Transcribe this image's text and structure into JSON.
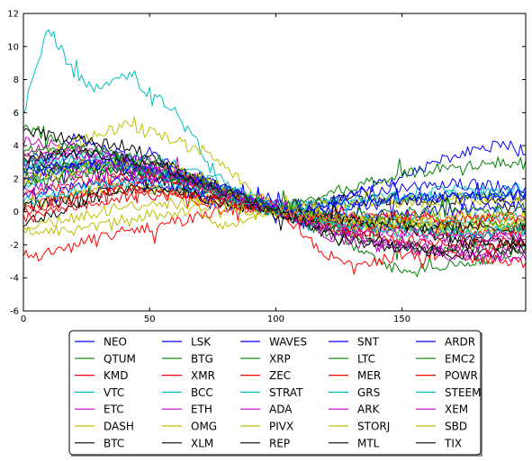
{
  "chart_data": {
    "type": "line",
    "title": "",
    "xlabel": "",
    "ylabel": "",
    "xlim": [
      0,
      199
    ],
    "ylim": [
      -6,
      12
    ],
    "x_ticks": [
      0,
      50,
      100,
      150
    ],
    "y_ticks": [
      -6,
      -4,
      -2,
      0,
      2,
      4,
      6,
      8,
      10,
      12
    ],
    "grid": false,
    "legend_placement": "below plot, 5 columns, boxed with shadow",
    "x_anchors": [
      0,
      10,
      20,
      30,
      40,
      50,
      60,
      70,
      80,
      90,
      100,
      110,
      120,
      130,
      140,
      150,
      160,
      170,
      180,
      190,
      199
    ],
    "series": [
      {
        "name": "NEO",
        "color": "#0000ff",
        "anchors": [
          1.5,
          3.2,
          4.6,
          3.8,
          3.4,
          2.0,
          1.4,
          1.0,
          0.3,
          0.9,
          0.5,
          -0.3,
          0.6,
          1.0,
          1.6,
          2.0,
          2.8,
          3.3,
          3.8,
          4.1,
          3.7
        ]
      },
      {
        "name": "QTUM",
        "color": "#008000",
        "anchors": [
          5.2,
          4.6,
          3.9,
          3.5,
          3.0,
          2.5,
          2.0,
          1.6,
          0.8,
          0.4,
          0.1,
          -0.5,
          -1.3,
          -2.2,
          -2.9,
          -3.6,
          -3.4,
          -3.1,
          -3.0,
          -2.6,
          -2.4
        ]
      },
      {
        "name": "KMD",
        "color": "#ff0000",
        "anchors": [
          -2.6,
          -2.5,
          -2.1,
          -1.5,
          -1.2,
          -0.9,
          -0.6,
          -0.3,
          0.2,
          0.5,
          0.3,
          -1.1,
          -2.6,
          -3.3,
          -3.0,
          -2.6,
          -2.6,
          -2.7,
          -2.8,
          -3.0,
          -3.1
        ]
      },
      {
        "name": "VTC",
        "color": "#00bfbf",
        "anchors": [
          6.0,
          11.2,
          8.4,
          7.3,
          8.3,
          7.3,
          6.0,
          3.8,
          1.7,
          0.8,
          0.3,
          0.4,
          0.6,
          0.5,
          0.9,
          1.0,
          1.2,
          1.3,
          1.2,
          1.3,
          1.4
        ]
      },
      {
        "name": "ETC",
        "color": "#bf00bf",
        "anchors": [
          4.3,
          4.1,
          3.7,
          3.4,
          3.0,
          2.6,
          2.3,
          1.5,
          0.9,
          0.6,
          0.1,
          -0.6,
          -1.4,
          -1.8,
          -2.0,
          -2.1,
          -2.3,
          -2.4,
          -2.4,
          -2.3,
          -2.2
        ]
      },
      {
        "name": "DASH",
        "color": "#bfbf00",
        "anchors": [
          -1.2,
          -1.2,
          -1.1,
          -0.9,
          -0.5,
          -0.2,
          0.0,
          0.1,
          -1.2,
          -0.3,
          0.1,
          0.2,
          0.4,
          0.5,
          0.6,
          0.8,
          0.8,
          0.9,
          0.9,
          0.9,
          0.9
        ]
      },
      {
        "name": "BTC",
        "color": "#000000",
        "anchors": [
          3.0,
          2.8,
          2.7,
          2.6,
          2.4,
          2.1,
          1.8,
          1.3,
          0.9,
          0.4,
          0.1,
          0.4,
          0.6,
          0.8,
          0.8,
          0.7,
          0.7,
          0.8,
          0.7,
          0.6,
          0.6
        ]
      },
      {
        "name": "LSK",
        "color": "#0000ff",
        "anchors": [
          3.2,
          3.3,
          3.4,
          3.2,
          3.0,
          3.6,
          2.6,
          1.9,
          1.1,
          0.6,
          0.3,
          0.2,
          0.6,
          1.0,
          1.3,
          1.5,
          1.6,
          1.7,
          1.6,
          1.5,
          1.4
        ]
      },
      {
        "name": "BTG",
        "color": "#008000",
        "anchors": [
          2.5,
          2.7,
          2.9,
          2.9,
          2.8,
          2.5,
          2.1,
          1.6,
          1.0,
          0.5,
          0.1,
          -0.4,
          -0.9,
          -1.4,
          -1.8,
          -2.0,
          -2.2,
          -2.3,
          -2.2,
          -2.1,
          -2.0
        ]
      },
      {
        "name": "XMR",
        "color": "#ff0000",
        "anchors": [
          0.4,
          0.6,
          1.0,
          1.4,
          1.8,
          2.1,
          2.0,
          1.7,
          1.1,
          0.5,
          0.0,
          -0.2,
          -0.3,
          -0.4,
          -0.4,
          -0.4,
          -0.5,
          -0.5,
          -0.4,
          -0.4,
          -0.4
        ]
      },
      {
        "name": "BCC",
        "color": "#00bfbf",
        "anchors": [
          1.6,
          2.1,
          2.6,
          2.7,
          2.6,
          2.4,
          2.2,
          1.8,
          1.4,
          0.7,
          0.0,
          -0.4,
          -0.7,
          -0.8,
          -0.9,
          -1.0,
          -1.1,
          -1.1,
          -1.2,
          -1.2,
          -1.2
        ]
      },
      {
        "name": "ETH",
        "color": "#bf00bf",
        "anchors": [
          2.0,
          2.3,
          2.6,
          2.7,
          2.6,
          2.4,
          2.1,
          1.7,
          1.2,
          0.6,
          0.1,
          -0.2,
          -0.6,
          -0.9,
          -1.1,
          -1.2,
          -1.3,
          -1.4,
          -1.4,
          -1.4,
          -1.4
        ]
      },
      {
        "name": "OMG",
        "color": "#bfbf00",
        "anchors": [
          3.2,
          3.6,
          4.1,
          4.7,
          5.2,
          5.0,
          4.3,
          3.8,
          2.8,
          1.2,
          0.4,
          0.3,
          0.4,
          0.5,
          0.6,
          0.6,
          0.6,
          0.7,
          0.7,
          0.7,
          0.7
        ]
      },
      {
        "name": "XLM",
        "color": "#000000",
        "anchors": [
          -0.6,
          -0.2,
          0.3,
          0.9,
          1.3,
          1.4,
          1.2,
          0.9,
          0.6,
          0.3,
          0.0,
          -0.4,
          -0.8,
          -1.2,
          -1.7,
          -2.1,
          -2.4,
          -2.5,
          -2.6,
          -2.4,
          -2.2
        ]
      },
      {
        "name": "WAVES",
        "color": "#0000ff",
        "anchors": [
          2.2,
          2.4,
          2.7,
          2.8,
          2.8,
          2.6,
          2.3,
          1.9,
          1.4,
          0.8,
          0.2,
          0.0,
          0.1,
          0.3,
          0.5,
          0.7,
          0.8,
          0.9,
          0.9,
          1.0,
          1.0
        ]
      },
      {
        "name": "XRP",
        "color": "#008000",
        "anchors": [
          1.6,
          1.9,
          2.2,
          2.4,
          2.4,
          2.3,
          2.1,
          1.8,
          1.3,
          0.7,
          0.2,
          -0.1,
          -0.3,
          -0.5,
          -0.6,
          -0.7,
          -0.8,
          -0.8,
          -0.8,
          -0.8,
          -0.8
        ]
      },
      {
        "name": "ZEC",
        "color": "#ff0000",
        "anchors": [
          1.0,
          1.3,
          1.7,
          2.0,
          2.1,
          2.0,
          1.8,
          1.4,
          1.0,
          0.5,
          0.0,
          -0.4,
          -0.7,
          -0.9,
          -1.0,
          -1.1,
          -1.2,
          -1.2,
          -1.2,
          -1.2,
          -1.2
        ]
      },
      {
        "name": "STRAT",
        "color": "#00bfbf",
        "anchors": [
          2.8,
          3.1,
          3.3,
          3.4,
          3.3,
          3.1,
          2.8,
          2.2,
          1.5,
          0.8,
          0.2,
          -0.2,
          -0.5,
          -0.6,
          -0.6,
          -0.6,
          -0.6,
          -0.5,
          -0.5,
          -0.4,
          -0.4
        ]
      },
      {
        "name": "ADA",
        "color": "#bf00bf",
        "anchors": [
          3.6,
          3.8,
          3.9,
          3.7,
          3.4,
          3.0,
          2.5,
          1.9,
          1.3,
          0.7,
          0.1,
          -0.5,
          -1.1,
          -1.5,
          -1.8,
          -1.9,
          -2.0,
          -2.0,
          -2.0,
          -1.9,
          -1.9
        ]
      },
      {
        "name": "PIVX",
        "color": "#bfbf00",
        "anchors": [
          0.4,
          0.7,
          1.1,
          1.4,
          1.5,
          1.4,
          1.2,
          0.9,
          0.6,
          0.3,
          0.0,
          -0.3,
          -0.6,
          -0.8,
          -0.9,
          -1.0,
          -1.1,
          -1.1,
          -1.0,
          -1.0,
          -1.0
        ]
      },
      {
        "name": "REP",
        "color": "#000000",
        "anchors": [
          4.8,
          4.6,
          4.4,
          4.2,
          4.0,
          3.4,
          2.7,
          2.0,
          1.3,
          0.6,
          0.0,
          -0.2,
          -0.4,
          -0.6,
          -0.8,
          -1.0,
          -1.3,
          -1.6,
          -1.8,
          -1.9,
          -1.8
        ]
      },
      {
        "name": "SNT",
        "color": "#0000ff",
        "anchors": [
          0.9,
          1.2,
          1.5,
          1.8,
          1.9,
          1.8,
          1.6,
          1.2,
          0.8,
          0.4,
          0.0,
          -0.3,
          -0.4,
          -0.3,
          -0.2,
          -0.1,
          0.0,
          0.1,
          0.2,
          0.3,
          0.3
        ]
      },
      {
        "name": "LTC",
        "color": "#008000",
        "anchors": [
          2.3,
          2.5,
          2.7,
          2.7,
          2.6,
          2.4,
          2.1,
          1.7,
          1.2,
          0.6,
          0.1,
          -0.1,
          -0.2,
          -0.2,
          -0.2,
          -0.1,
          -0.1,
          0.0,
          0.0,
          0.0,
          0.1
        ]
      },
      {
        "name": "MER",
        "color": "#ff0000",
        "anchors": [
          -0.4,
          -0.1,
          0.3,
          0.7,
          0.9,
          1.0,
          0.9,
          0.7,
          0.5,
          0.2,
          0.0,
          -0.1,
          -0.2,
          -0.3,
          -0.3,
          -0.3,
          -0.3,
          -0.3,
          -0.3,
          -0.3,
          -0.3
        ]
      },
      {
        "name": "GRS",
        "color": "#00bfbf",
        "anchors": [
          2.9,
          3.0,
          3.1,
          3.0,
          2.8,
          2.5,
          2.2,
          1.8,
          1.2,
          0.6,
          0.1,
          0.3,
          0.5,
          0.7,
          0.8,
          0.9,
          1.0,
          1.1,
          1.1,
          1.1,
          1.1
        ]
      },
      {
        "name": "ARK",
        "color": "#bf00bf",
        "anchors": [
          1.3,
          1.6,
          2.0,
          2.2,
          2.3,
          2.2,
          2.0,
          1.7,
          1.2,
          0.6,
          0.1,
          -0.3,
          -0.6,
          -0.9,
          -1.1,
          -1.3,
          -1.4,
          -1.5,
          -1.5,
          -1.4,
          -1.4
        ]
      },
      {
        "name": "STORJ",
        "color": "#bfbf00",
        "anchors": [
          1.9,
          2.2,
          2.5,
          2.8,
          2.9,
          2.9,
          2.6,
          2.1,
          1.4,
          0.7,
          0.1,
          -0.2,
          -0.4,
          -0.6,
          -0.7,
          -0.8,
          -0.9,
          -0.9,
          -0.9,
          -0.8,
          -0.8
        ]
      },
      {
        "name": "MTL",
        "color": "#000000",
        "anchors": [
          0.2,
          0.5,
          0.9,
          1.2,
          1.4,
          1.4,
          1.2,
          0.9,
          0.6,
          0.3,
          0.0,
          -0.2,
          -0.4,
          -0.5,
          -0.7,
          -0.8,
          -0.9,
          -1.0,
          -1.0,
          -0.9,
          -0.9
        ]
      },
      {
        "name": "ARDR",
        "color": "#0000ff",
        "anchors": [
          2.6,
          2.8,
          2.9,
          2.9,
          2.8,
          2.6,
          2.3,
          1.9,
          1.3,
          0.7,
          0.1,
          0.1,
          0.3,
          0.5,
          0.7,
          0.8,
          0.9,
          1.0,
          1.0,
          1.1,
          1.1
        ]
      },
      {
        "name": "EMC2",
        "color": "#008000",
        "anchors": [
          3.8,
          3.9,
          3.8,
          3.6,
          3.3,
          2.9,
          2.4,
          1.8,
          1.2,
          0.6,
          0.1,
          0.6,
          1.1,
          1.5,
          1.9,
          2.2,
          2.5,
          2.7,
          2.8,
          3.0,
          2.9
        ]
      },
      {
        "name": "POWR",
        "color": "#ff0000",
        "anchors": [
          0.1,
          0.4,
          0.8,
          1.1,
          1.3,
          1.3,
          1.2,
          0.9,
          0.6,
          0.3,
          0.0,
          -0.4,
          -0.8,
          -1.2,
          -1.5,
          -1.7,
          -1.8,
          -1.9,
          -1.9,
          -1.9,
          -1.9
        ]
      },
      {
        "name": "STEEM",
        "color": "#00bfbf",
        "anchors": [
          0.6,
          0.9,
          1.3,
          1.6,
          1.8,
          1.8,
          1.6,
          1.3,
          0.9,
          0.4,
          0.0,
          -0.4,
          -0.7,
          -0.9,
          -1.1,
          -1.2,
          -1.3,
          -1.3,
          -1.3,
          -1.2,
          -1.2
        ]
      },
      {
        "name": "XEM",
        "color": "#bf00bf",
        "anchors": [
          3.0,
          3.2,
          3.3,
          3.2,
          3.0,
          2.7,
          2.3,
          1.8,
          1.2,
          0.6,
          0.1,
          -0.4,
          -0.9,
          -1.4,
          -1.8,
          -2.1,
          -2.4,
          -2.6,
          -2.7,
          -2.7,
          -2.6
        ]
      },
      {
        "name": "SBD",
        "color": "#bfbf00",
        "anchors": [
          -0.9,
          -0.7,
          -0.4,
          0.0,
          0.3,
          0.5,
          0.5,
          0.4,
          0.2,
          0.1,
          0.0,
          -0.2,
          -0.3,
          -0.4,
          -0.4,
          -0.4,
          -0.4,
          -0.4,
          -0.3,
          -0.3,
          -0.3
        ]
      },
      {
        "name": "TIX",
        "color": "#000000",
        "anchors": [
          3.2,
          3.4,
          3.6,
          3.5,
          3.2,
          2.9,
          2.4,
          1.8,
          1.2,
          0.6,
          0.0,
          -0.6,
          -1.2,
          -1.7,
          -2.0,
          -2.2,
          -2.2,
          -2.1,
          -2.0,
          -1.9,
          -1.8
        ]
      }
    ]
  }
}
